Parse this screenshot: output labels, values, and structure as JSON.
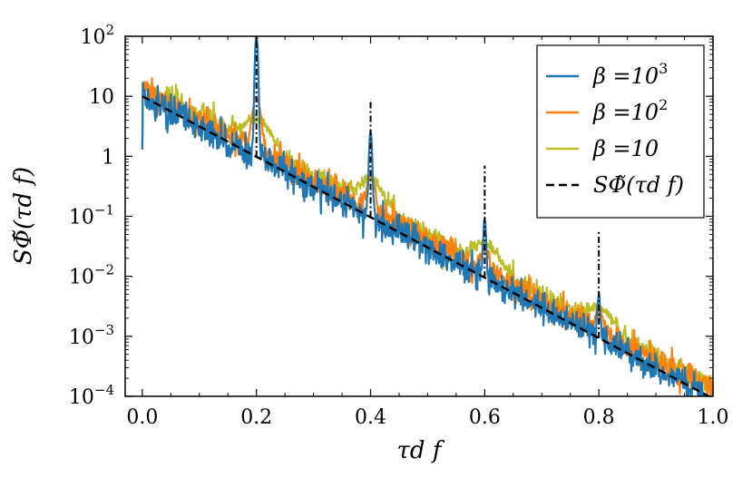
{
  "chart_data": {
    "type": "line",
    "yscale": "log",
    "xlim": [
      -0.03,
      1.0
    ],
    "ylim": [
      0.0001,
      100
    ],
    "xlabel": "τd f",
    "ylabel": "SΦ̃(τd f)",
    "x_ticks": [
      "0.0",
      "0.2",
      "0.4",
      "0.6",
      "0.8",
      "1.0"
    ],
    "y_ticks": [
      {
        "value": 100,
        "base": "10",
        "exp": "2"
      },
      {
        "value": 10,
        "base": "10",
        "exp": ""
      },
      {
        "value": 1,
        "base": "1",
        "exp": ""
      },
      {
        "value": 0.1,
        "base": "10",
        "exp": "−1"
      },
      {
        "value": 0.01,
        "base": "10",
        "exp": "−2"
      },
      {
        "value": 0.001,
        "base": "10",
        "exp": "−3"
      },
      {
        "value": 0.0001,
        "base": "10",
        "exp": "−4"
      }
    ],
    "legend_position": "top-right",
    "series": [
      {
        "name": "β = 10³",
        "label_main": "β =10",
        "label_exp": "3",
        "color": "#1f77b4",
        "peak_width": 0.002,
        "peaks": [
          {
            "x": 0.2,
            "y": 100
          },
          {
            "x": 0.4,
            "y": 2.5
          },
          {
            "x": 0.6,
            "y": 0.08
          },
          {
            "x": 0.8,
            "y": 0.004
          }
        ],
        "noise": 0.13,
        "offset": 0.0
      },
      {
        "name": "β = 10²",
        "label_main": "β =10",
        "label_exp": "2",
        "color": "#ff7f0e",
        "peak_width": 0.006,
        "peaks": [
          {
            "x": 0.2,
            "y": 8
          },
          {
            "x": 0.4,
            "y": 0.3
          },
          {
            "x": 0.6,
            "y": 0.015
          },
          {
            "x": 0.8,
            "y": 0.0012
          }
        ],
        "noise": 0.12,
        "offset": 0.12
      },
      {
        "name": "β = 10",
        "label_main": "β =10",
        "label_exp": "",
        "color": "#bcbd22",
        "peak_width": 0.02,
        "peaks": [
          {
            "x": 0.2,
            "y": 2.5
          },
          {
            "x": 0.4,
            "y": 0.25
          },
          {
            "x": 0.6,
            "y": 0.02
          },
          {
            "x": 0.8,
            "y": 0.0015
          }
        ],
        "noise": 0.1,
        "offset": 0.2
      }
    ],
    "analytic": {
      "name": "SΦ̃(τd f)",
      "y0": 10,
      "decay_per_unit": 11.6,
      "color": "#000000",
      "style": "dashed"
    },
    "delta_lines": [
      {
        "x": 0.2,
        "y_top": 100
      },
      {
        "x": 0.4,
        "y_top": 9
      },
      {
        "x": 0.6,
        "y_top": 0.7
      },
      {
        "x": 0.8,
        "y_top": 0.055
      }
    ]
  }
}
